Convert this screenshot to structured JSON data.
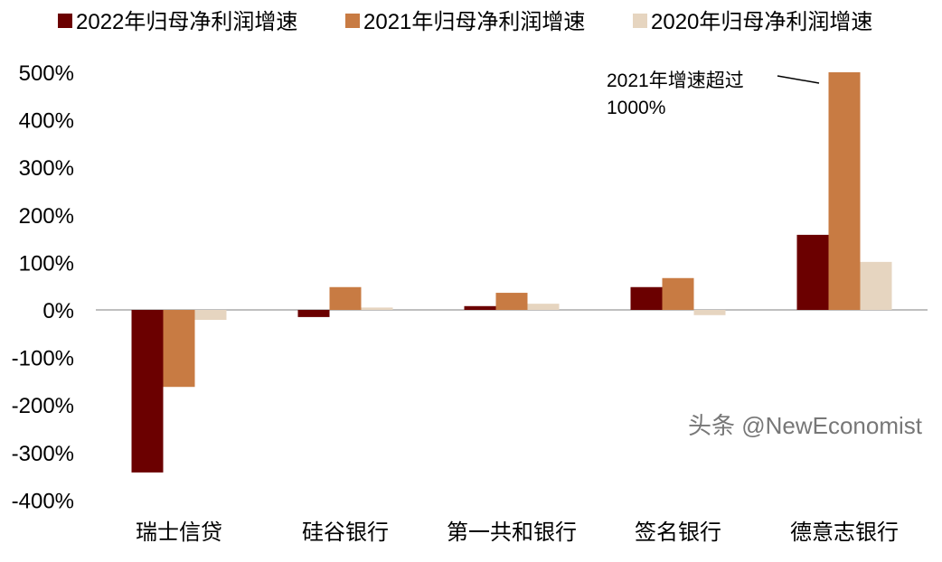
{
  "chart_data": {
    "type": "bar",
    "categories": [
      "瑞士信贷",
      "硅谷银行",
      "第一共和银行",
      "签名银行",
      "德意志银行"
    ],
    "series": [
      {
        "name": "2022年归母净利润增速",
        "color": "#6b0000",
        "values": [
          -342,
          -15,
          8,
          48,
          158
        ]
      },
      {
        "name": "2021年归母净利润增速",
        "color": "#c87b43",
        "values": [
          -162,
          48,
          36,
          67,
          500
        ]
      },
      {
        "name": "2020年归母净利润增速",
        "color": "#e6d5c0",
        "values": [
          -21,
          5,
          13,
          -11,
          101
        ]
      }
    ],
    "ylim": [
      -400,
      500
    ],
    "yticks": [
      "500%",
      "400%",
      "300%",
      "200%",
      "100%",
      "0%",
      "-100%",
      "-200%",
      "-300%",
      "-400%"
    ],
    "legend_position": "top",
    "grid": false,
    "annotation": {
      "line1": "2021年增速超过",
      "line2": "1000%"
    }
  },
  "watermark": "头条 @NewEconomist"
}
